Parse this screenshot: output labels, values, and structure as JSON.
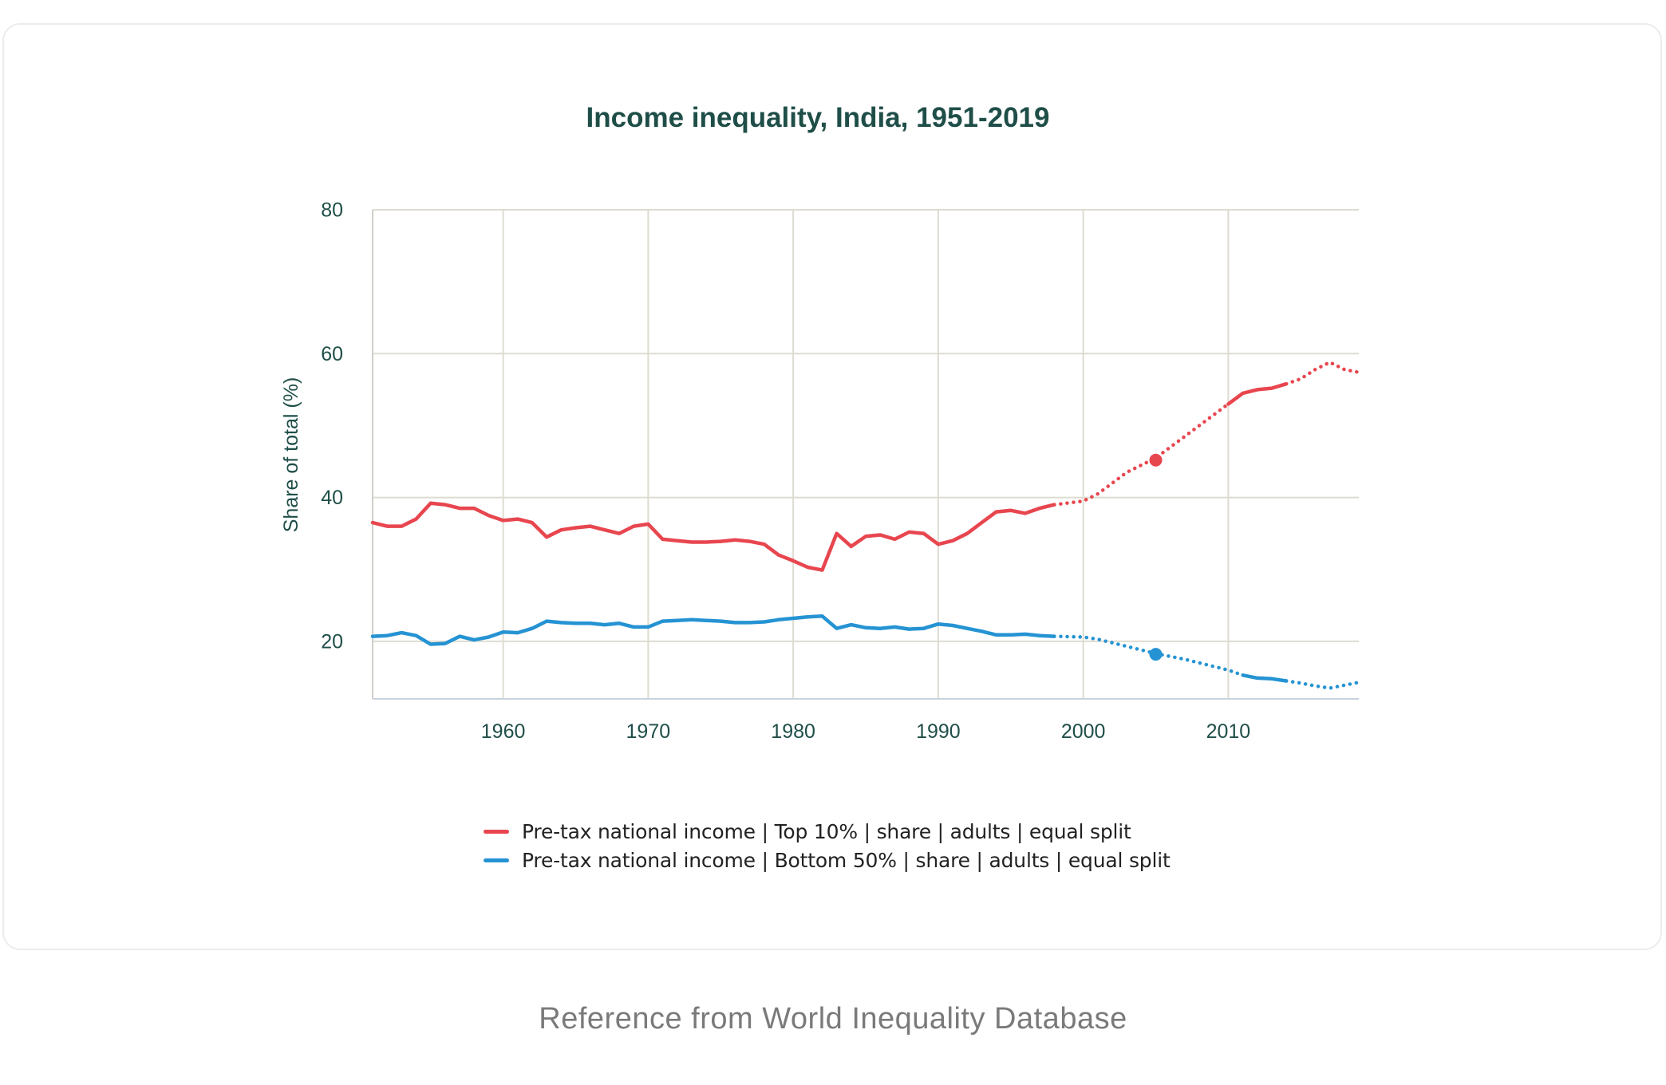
{
  "colors": {
    "top10": "#e8464f",
    "bottom50": "#2593d3",
    "grid": "#dedcd0",
    "title": "#1f4e48"
  },
  "chart_data": {
    "type": "line",
    "title": "Income inequality, India, 1951-2019",
    "xlabel": "",
    "ylabel": "Share of total (%)",
    "xlim": [
      1951,
      2019
    ],
    "ylim": [
      12,
      80
    ],
    "x_ticks": [
      1960,
      1970,
      1980,
      1990,
      2000,
      2010
    ],
    "y_ticks": [
      20,
      40,
      60,
      80
    ],
    "grid": true,
    "legend_position": "bottom-center",
    "series": [
      {
        "name": "Pre-tax national income | Top 10% | share | adults | equal split",
        "color": "#e8464f",
        "solid": [
          [
            1951,
            36.5
          ],
          [
            1952,
            36.0
          ],
          [
            1953,
            36.0
          ],
          [
            1954,
            37.0
          ],
          [
            1955,
            39.2
          ],
          [
            1956,
            39.0
          ],
          [
            1957,
            38.5
          ],
          [
            1958,
            38.5
          ],
          [
            1959,
            37.5
          ],
          [
            1960,
            36.8
          ],
          [
            1961,
            37.0
          ],
          [
            1962,
            36.5
          ],
          [
            1963,
            34.5
          ],
          [
            1964,
            35.5
          ],
          [
            1965,
            35.8
          ],
          [
            1966,
            36.0
          ],
          [
            1967,
            35.5
          ],
          [
            1968,
            35.0
          ],
          [
            1969,
            36.0
          ],
          [
            1970,
            36.3
          ],
          [
            1971,
            34.2
          ],
          [
            1972,
            34.0
          ],
          [
            1973,
            33.8
          ],
          [
            1974,
            33.8
          ],
          [
            1975,
            33.9
          ],
          [
            1976,
            34.1
          ],
          [
            1977,
            33.9
          ],
          [
            1978,
            33.5
          ],
          [
            1979,
            32.0
          ],
          [
            1980,
            31.2
          ],
          [
            1981,
            30.3
          ],
          [
            1982,
            29.9
          ],
          [
            1983,
            35.0
          ],
          [
            1984,
            33.2
          ],
          [
            1985,
            34.6
          ],
          [
            1986,
            34.8
          ],
          [
            1987,
            34.2
          ],
          [
            1988,
            35.2
          ],
          [
            1989,
            35.0
          ],
          [
            1990,
            33.5
          ],
          [
            1991,
            34.0
          ],
          [
            1992,
            35.0
          ],
          [
            1993,
            36.5
          ],
          [
            1994,
            38.0
          ],
          [
            1995,
            38.2
          ],
          [
            1996,
            37.8
          ],
          [
            1997,
            38.5
          ],
          [
            1998,
            39.0
          ]
        ],
        "dotted_segments": [
          [
            [
              1998,
              39.0
            ],
            [
              2000,
              39.5
            ],
            [
              2001,
              40.5
            ],
            [
              2002,
              42.0
            ],
            [
              2003,
              43.5
            ],
            [
              2004,
              44.5
            ],
            [
              2005,
              45.5
            ],
            [
              2006,
              47.0
            ],
            [
              2007,
              48.5
            ],
            [
              2008,
              50.0
            ],
            [
              2009,
              51.5
            ],
            [
              2010,
              53.0
            ]
          ],
          [
            [
              2014,
              55.8
            ],
            [
              2015,
              56.5
            ],
            [
              2016,
              57.8
            ],
            [
              2017,
              58.8
            ],
            [
              2018,
              57.8
            ],
            [
              2019,
              57.4
            ]
          ]
        ],
        "solid_late": [
          [
            2010,
            53.0
          ],
          [
            2011,
            54.5
          ],
          [
            2012,
            55.0
          ],
          [
            2013,
            55.2
          ],
          [
            2014,
            55.8
          ]
        ],
        "marker": [
          2005,
          45.2
        ]
      },
      {
        "name": "Pre-tax national income | Bottom 50% | share | adults | equal split",
        "color": "#2593d3",
        "solid": [
          [
            1951,
            20.7
          ],
          [
            1952,
            20.8
          ],
          [
            1953,
            21.2
          ],
          [
            1954,
            20.8
          ],
          [
            1955,
            19.6
          ],
          [
            1956,
            19.7
          ],
          [
            1957,
            20.7
          ],
          [
            1958,
            20.2
          ],
          [
            1959,
            20.6
          ],
          [
            1960,
            21.3
          ],
          [
            1961,
            21.2
          ],
          [
            1962,
            21.8
          ],
          [
            1963,
            22.8
          ],
          [
            1964,
            22.6
          ],
          [
            1965,
            22.5
          ],
          [
            1966,
            22.5
          ],
          [
            1967,
            22.3
          ],
          [
            1968,
            22.5
          ],
          [
            1969,
            22.0
          ],
          [
            1970,
            22.0
          ],
          [
            1971,
            22.8
          ],
          [
            1972,
            22.9
          ],
          [
            1973,
            23.0
          ],
          [
            1974,
            22.9
          ],
          [
            1975,
            22.8
          ],
          [
            1976,
            22.6
          ],
          [
            1977,
            22.6
          ],
          [
            1978,
            22.7
          ],
          [
            1979,
            23.0
          ],
          [
            1980,
            23.2
          ],
          [
            1981,
            23.4
          ],
          [
            1982,
            23.5
          ],
          [
            1983,
            21.8
          ],
          [
            1984,
            22.3
          ],
          [
            1985,
            21.9
          ],
          [
            1986,
            21.8
          ],
          [
            1987,
            22.0
          ],
          [
            1988,
            21.7
          ],
          [
            1989,
            21.8
          ],
          [
            1990,
            22.4
          ],
          [
            1991,
            22.2
          ],
          [
            1992,
            21.8
          ],
          [
            1993,
            21.4
          ],
          [
            1994,
            20.9
          ],
          [
            1995,
            20.9
          ],
          [
            1996,
            21.0
          ],
          [
            1997,
            20.8
          ],
          [
            1998,
            20.7
          ]
        ],
        "dotted_segments": [
          [
            [
              1998,
              20.7
            ],
            [
              2000,
              20.6
            ],
            [
              2001,
              20.3
            ],
            [
              2002,
              19.8
            ],
            [
              2003,
              19.3
            ],
            [
              2004,
              18.8
            ],
            [
              2005,
              18.3
            ],
            [
              2006,
              17.9
            ],
            [
              2007,
              17.5
            ],
            [
              2008,
              17.0
            ],
            [
              2009,
              16.5
            ],
            [
              2010,
              16.0
            ],
            [
              2011,
              15.3
            ]
          ],
          [
            [
              2014,
              14.5
            ],
            [
              2015,
              14.2
            ],
            [
              2016,
              13.8
            ],
            [
              2017,
              13.5
            ],
            [
              2018,
              13.9
            ],
            [
              2019,
              14.3
            ]
          ]
        ],
        "solid_late": [
          [
            2011,
            15.3
          ],
          [
            2012,
            14.9
          ],
          [
            2013,
            14.8
          ],
          [
            2014,
            14.5
          ]
        ],
        "marker": [
          2005,
          18.2
        ]
      }
    ]
  },
  "source_note": "Reference from World Inequality Database"
}
